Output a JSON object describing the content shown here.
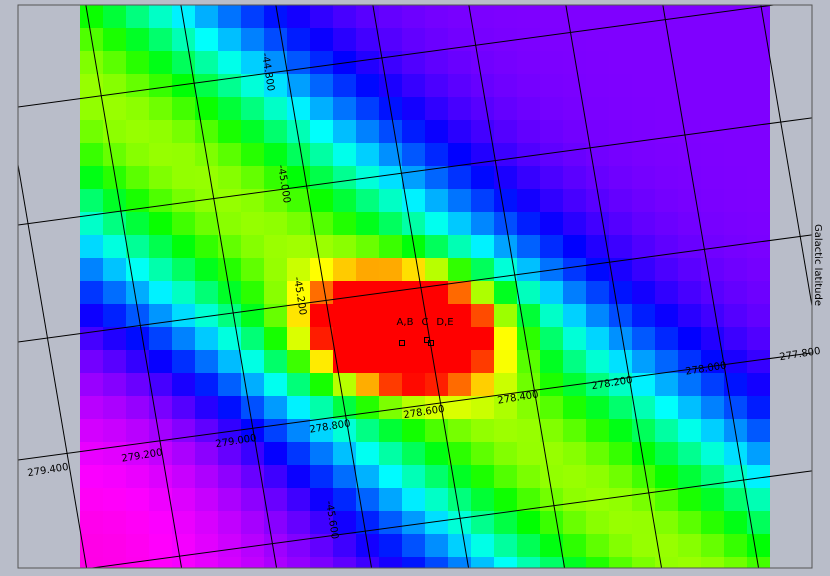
{
  "axis_label": "Galactic latitude",
  "longitude_labels": [
    "279.400",
    "279.200",
    "279.000",
    "278.800",
    "278.600",
    "278.400",
    "278.200",
    "278.000",
    "277.800"
  ],
  "latitude_labels": [
    {
      "text": "-44.800",
      "slot": 0
    },
    {
      "text": "-45.000",
      "slot": 1
    },
    {
      "text": "-45.200",
      "slot": 2
    },
    {
      "text": "-45.600",
      "slot": 4
    }
  ],
  "sources": [
    "A,B",
    "C",
    "D,E"
  ]
}
